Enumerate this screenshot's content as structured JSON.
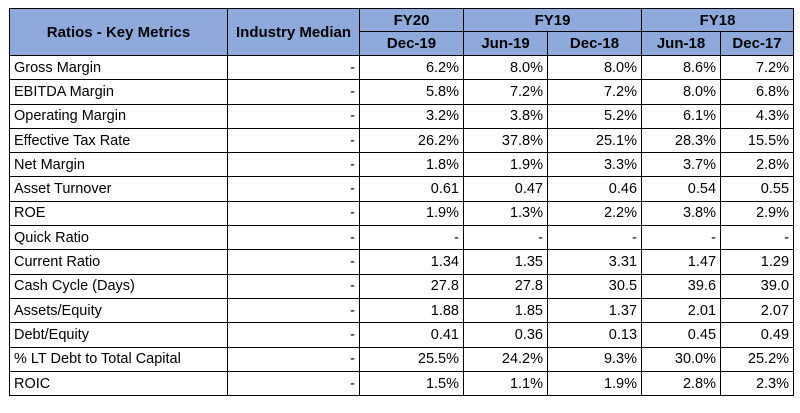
{
  "table": {
    "header": {
      "metrics_label": "Ratios - Key Metrics",
      "median_label": "Industry Median",
      "fiscal_years": [
        {
          "label": "FY20",
          "periods": [
            "Dec-19"
          ]
        },
        {
          "label": "FY19",
          "periods": [
            "Jun-19",
            "Dec-18"
          ]
        },
        {
          "label": "FY18",
          "periods": [
            "Jun-18",
            "Dec-17"
          ]
        }
      ]
    },
    "rows": [
      {
        "metric": "Gross Margin",
        "median": "-",
        "values": [
          "6.2%",
          "8.0%",
          "8.0%",
          "8.6%",
          "7.2%"
        ]
      },
      {
        "metric": "EBITDA Margin",
        "median": "-",
        "values": [
          "5.8%",
          "7.2%",
          "7.2%",
          "8.0%",
          "6.8%"
        ]
      },
      {
        "metric": "Operating Margin",
        "median": "-",
        "values": [
          "3.2%",
          "3.8%",
          "5.2%",
          "6.1%",
          "4.3%"
        ]
      },
      {
        "metric": "Effective Tax Rate",
        "median": "-",
        "values": [
          "26.2%",
          "37.8%",
          "25.1%",
          "28.3%",
          "15.5%"
        ]
      },
      {
        "metric": "Net Margin",
        "median": "-",
        "values": [
          "1.8%",
          "1.9%",
          "3.3%",
          "3.7%",
          "2.8%"
        ]
      },
      {
        "metric": "Asset Turnover",
        "median": "-",
        "values": [
          "0.61",
          "0.47",
          "0.46",
          "0.54",
          "0.55"
        ]
      },
      {
        "metric": "ROE",
        "median": "-",
        "values": [
          "1.9%",
          "1.3%",
          "2.2%",
          "3.8%",
          "2.9%"
        ]
      },
      {
        "metric": "Quick Ratio",
        "median": "-",
        "values": [
          "-",
          "-",
          "-",
          "-",
          "-"
        ]
      },
      {
        "metric": "Current Ratio",
        "median": "-",
        "values": [
          "1.34",
          "1.35",
          "3.31",
          "1.47",
          "1.29"
        ]
      },
      {
        "metric": "Cash Cycle (Days)",
        "median": "-",
        "values": [
          "27.8",
          "27.8",
          "30.5",
          "39.6",
          "39.0"
        ]
      },
      {
        "metric": "Assets/Equity",
        "median": "-",
        "values": [
          "1.88",
          "1.85",
          "1.37",
          "2.01",
          "2.07"
        ]
      },
      {
        "metric": "Debt/Equity",
        "median": "-",
        "values": [
          "0.41",
          "0.36",
          "0.13",
          "0.45",
          "0.49"
        ]
      },
      {
        "metric": "% LT Debt to Total Capital",
        "median": "-",
        "values": [
          "25.5%",
          "24.2%",
          "9.3%",
          "30.0%",
          "25.2%"
        ]
      },
      {
        "metric": "ROIC",
        "median": "-",
        "values": [
          "1.5%",
          "1.1%",
          "1.9%",
          "2.8%",
          "2.3%"
        ]
      }
    ],
    "colors": {
      "header_bg": "#8eaadb",
      "median_bg": "#d9e1f2",
      "border": "#000000"
    }
  }
}
